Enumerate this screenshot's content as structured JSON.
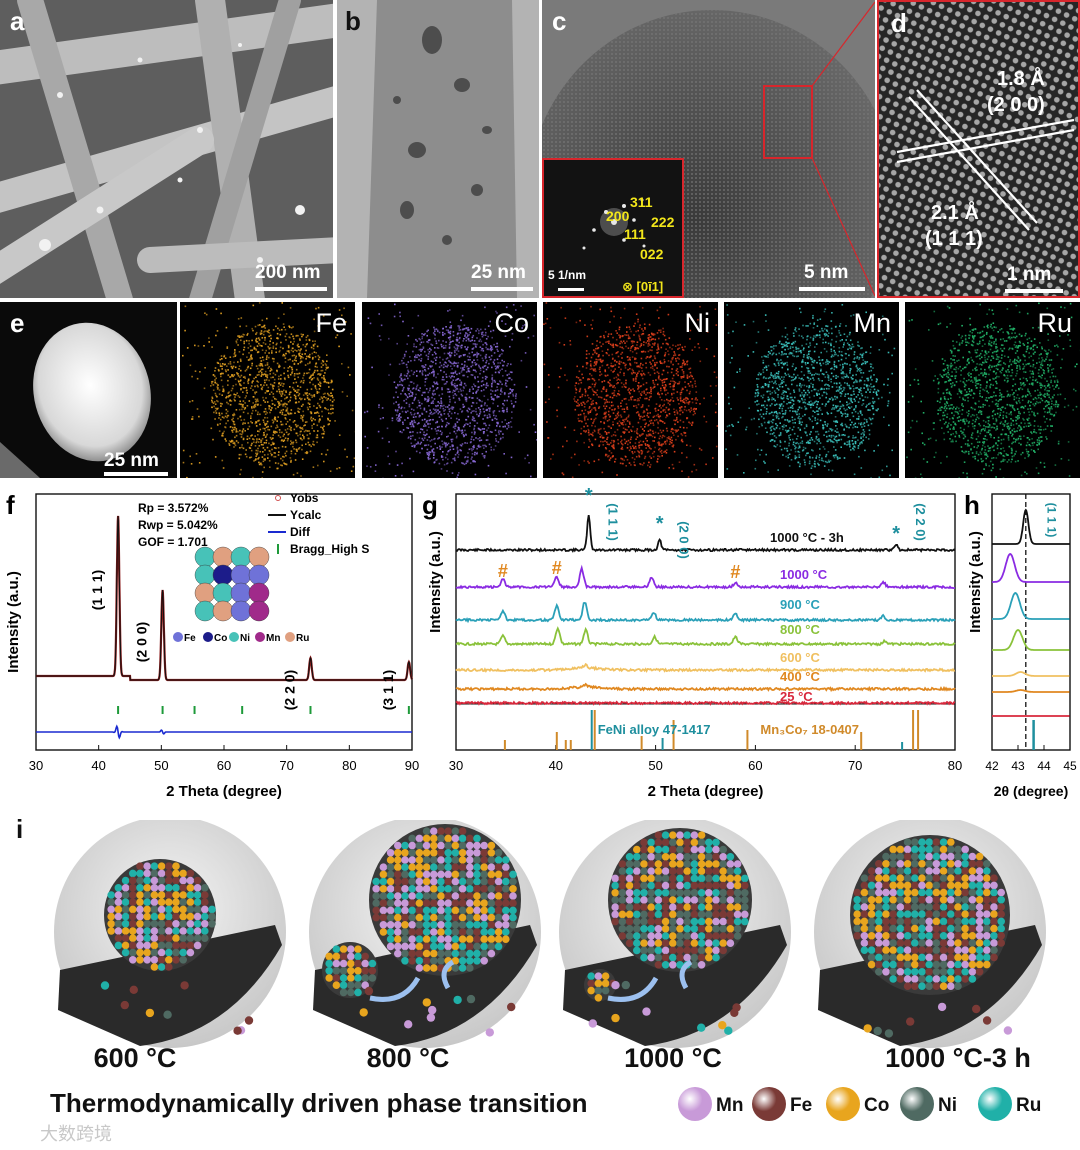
{
  "panels": {
    "a": {
      "label": "a",
      "scale": "200 nm"
    },
    "b": {
      "label": "b",
      "scale": "25 nm"
    },
    "c": {
      "label": "c",
      "scale": "5 nm",
      "inset_scale": "5 1/nm",
      "inset_zone": "⊗ [0ī1]",
      "spots": [
        "311",
        "200",
        "222",
        "111",
        "022"
      ]
    },
    "d": {
      "label": "d",
      "scale": "1 nm",
      "d1": "1.8 Å",
      "d1_plane": "(2 0 0)",
      "d2": "2.1 Å",
      "d2_plane": "(1 1 1)"
    },
    "e": {
      "label": "e",
      "scale": "25 nm",
      "maps": [
        {
          "element": "Fe",
          "color": "#e4a222"
        },
        {
          "element": "Co",
          "color": "#8a6ad8"
        },
        {
          "element": "Ni",
          "color": "#e0401c"
        },
        {
          "element": "Mn",
          "color": "#3cc5c0"
        },
        {
          "element": "Ru",
          "color": "#22b56a"
        }
      ]
    }
  },
  "chart_data": [
    {
      "id": "f",
      "type": "line",
      "label": "f",
      "xlabel": "2 Theta (degree)",
      "ylabel": "Intensity (a.u.)",
      "xlim": [
        30,
        90
      ],
      "xticks": [
        30,
        40,
        50,
        60,
        70,
        80,
        90
      ],
      "stats": [
        "Rp = 3.572%",
        "Rwp = 5.042%",
        "GOF = 1.701"
      ],
      "legend": [
        "Yobs",
        "Ycalc",
        "Diff",
        "Bragg_High S"
      ],
      "peaks": [
        {
          "x": 43.1,
          "label": "(1 1 1)"
        },
        {
          "x": 50.2,
          "label": "(2 0 0)"
        },
        {
          "x": 73.8,
          "label": "(2 2 0)"
        },
        {
          "x": 89.5,
          "label": "(3 1 1)"
        }
      ],
      "bragg": [
        43.1,
        50.2,
        55.3,
        62.9,
        73.8,
        89.5
      ],
      "crystal_legend": [
        "Fe",
        "Co",
        "Ni",
        "Mn",
        "Ru"
      ]
    },
    {
      "id": "g",
      "type": "line",
      "label": "g",
      "xlabel": "2 Theta (degree)",
      "ylabel": "Intensity (a.u.)",
      "xlim": [
        30,
        80
      ],
      "xticks": [
        30,
        40,
        50,
        60,
        70,
        80
      ],
      "series": [
        {
          "name": "1000 °C - 3h",
          "color": "#111111"
        },
        {
          "name": "1000 °C",
          "color": "#8a2be2"
        },
        {
          "name": "900 °C",
          "color": "#2aa0b8"
        },
        {
          "name": "800 °C",
          "color": "#8ac23a"
        },
        {
          "name": "600 °C",
          "color": "#f0c060"
        },
        {
          "name": "400 °C",
          "color": "#e08820"
        },
        {
          "name": "25 °C",
          "color": "#d8283c"
        }
      ],
      "peak_labels": [
        {
          "x": 43.3,
          "label": "(1 1 1)"
        },
        {
          "x": 50.4,
          "label": "(2 0 0)"
        },
        {
          "x": 74.1,
          "label": "(2 2 0)"
        }
      ],
      "reference": [
        "FeNi alloy 47-1417",
        "Mn₃Co₇ 18-0407"
      ]
    },
    {
      "id": "h",
      "type": "line",
      "label": "h",
      "xlabel": "2θ (degree)",
      "ylabel": "Intensity (a.u.)",
      "xlim": [
        42,
        45
      ],
      "xticks": [
        42,
        43,
        44,
        45
      ],
      "peak_label": "(1 1 1)"
    }
  ],
  "schematic": {
    "label": "i",
    "temps": [
      "600 °C",
      "800 °C",
      "1000 °C",
      "1000 °C-3 h"
    ],
    "title": "Thermodynamically driven phase transition",
    "legend": [
      {
        "element": "Mn",
        "color": "#c89ad8"
      },
      {
        "element": "Fe",
        "color": "#7a3a36"
      },
      {
        "element": "Co",
        "color": "#e8a51e"
      },
      {
        "element": "Ni",
        "color": "#4f6a62"
      },
      {
        "element": "Ru",
        "color": "#20b0a8"
      }
    ]
  },
  "watermark": "大数跨境"
}
